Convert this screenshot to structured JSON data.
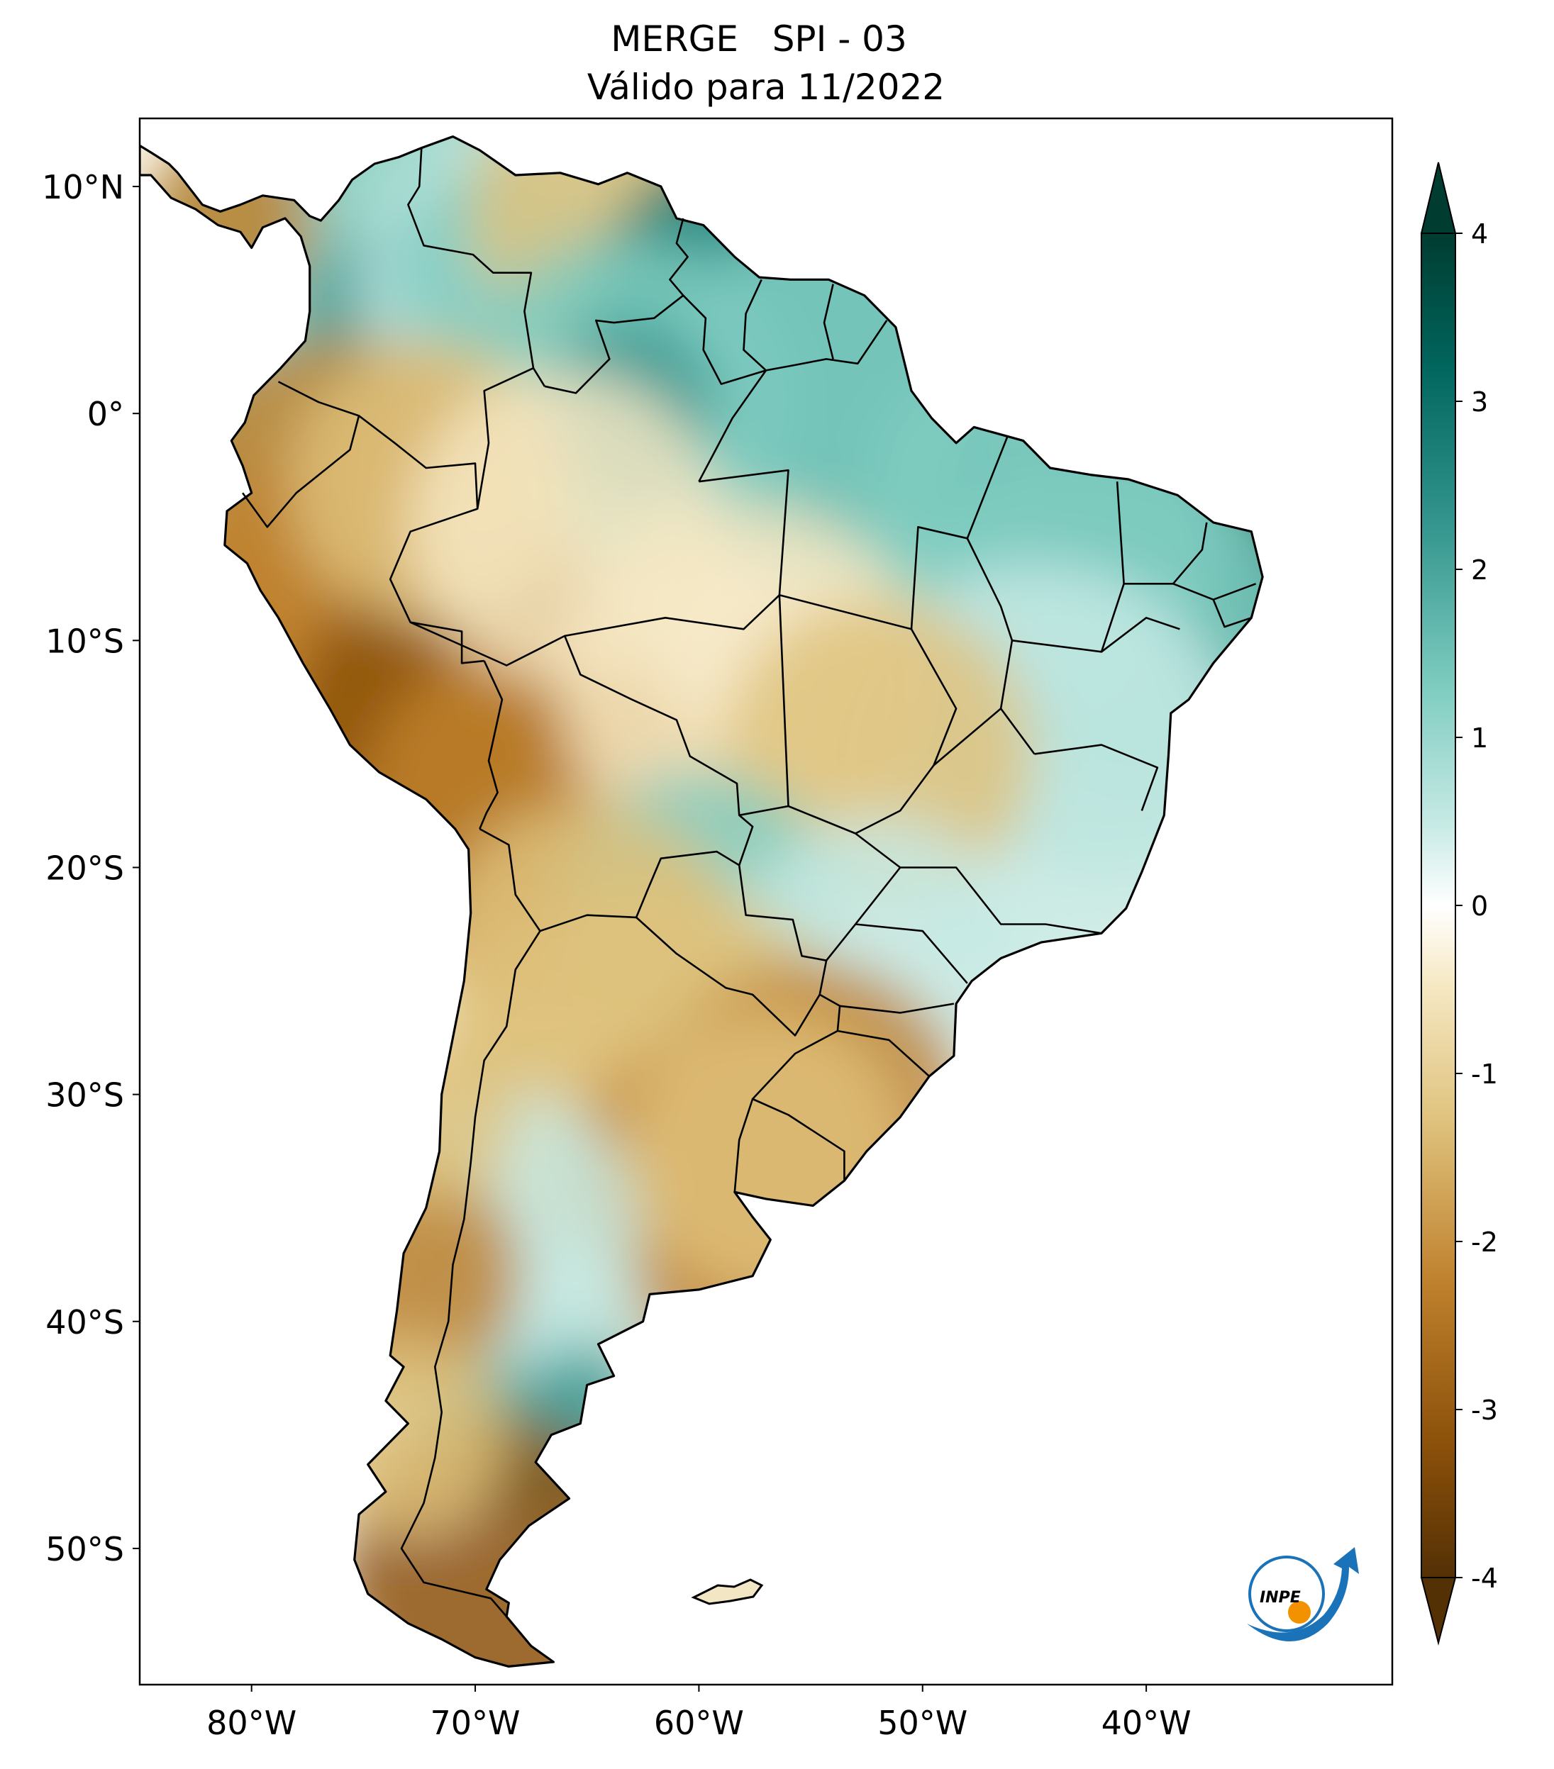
{
  "title": {
    "line1": "MERGE   SPI - 03",
    "line2": "Válido para 11/2022"
  },
  "map": {
    "variable": "SPI - 03",
    "lon_ticks": [
      {
        "value": -80,
        "label": "80°W"
      },
      {
        "value": -70,
        "label": "70°W"
      },
      {
        "value": -60,
        "label": "60°W"
      },
      {
        "value": -50,
        "label": "50°W"
      },
      {
        "value": -40,
        "label": "40°W"
      }
    ],
    "lat_ticks": [
      {
        "value": 10,
        "label": "10°N"
      },
      {
        "value": 0,
        "label": "0°"
      },
      {
        "value": -10,
        "label": "10°S"
      },
      {
        "value": -20,
        "label": "20°S"
      },
      {
        "value": -30,
        "label": "30°S"
      },
      {
        "value": -40,
        "label": "40°S"
      },
      {
        "value": -50,
        "label": "50°S"
      }
    ],
    "lon_range": [
      -85,
      -29
    ],
    "lat_range": [
      -56,
      13
    ]
  },
  "colorbar": {
    "ticks": [
      {
        "value": 4,
        "label": "4"
      },
      {
        "value": 3,
        "label": "3"
      },
      {
        "value": 2,
        "label": "2"
      },
      {
        "value": 1,
        "label": "1"
      },
      {
        "value": 0,
        "label": "0"
      },
      {
        "value": -1,
        "label": "-1"
      },
      {
        "value": -2,
        "label": "-2"
      },
      {
        "value": -3,
        "label": "-3"
      },
      {
        "value": -4,
        "label": "-4"
      }
    ],
    "range": [
      -4,
      4
    ],
    "colors": {
      "dry_extreme": "#543005",
      "dry_strong": "#8c510a",
      "dry_moderate": "#bf812d",
      "dry_mild": "#dfc27d",
      "dry_slight": "#f6e8c3",
      "neutral": "#ffffff",
      "wet_slight": "#c7eae5",
      "wet_mild": "#80cdc1",
      "wet_moderate": "#35978f",
      "wet_strong": "#01665e",
      "wet_extreme": "#003c30"
    }
  },
  "logo": {
    "text": "INPE"
  }
}
